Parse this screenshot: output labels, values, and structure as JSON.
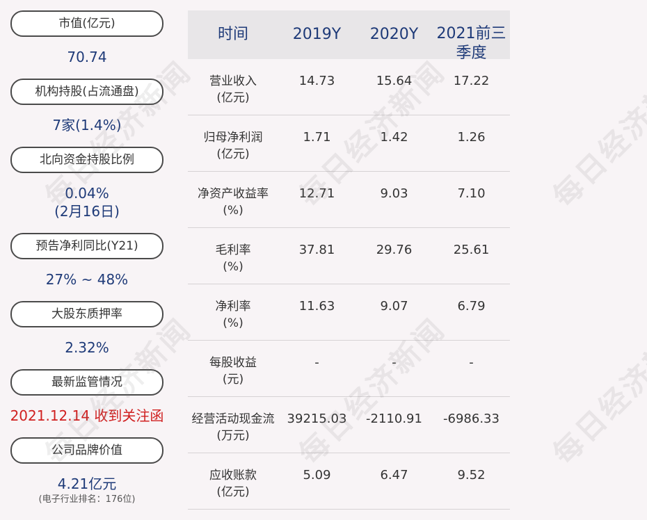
{
  "left_panel": [
    {
      "label": "市值(亿元)",
      "value": "70.74"
    },
    {
      "label": "机构持股(占流通盘)",
      "value": "7家(1.4%)"
    },
    {
      "label": "北向资金持股比例",
      "value": "0.04%",
      "value2": "(2月16日)"
    },
    {
      "label": "预告净利同比(Y21)",
      "value": "27% ~ 48%"
    },
    {
      "label": "大股东质押率",
      "value": "2.32%"
    },
    {
      "label": "最新监管情况",
      "value": "2021.12.14 收到关注函"
    },
    {
      "label": "公司品牌价值",
      "value": "4.21亿元",
      "note": "(电子行业排名：176位)"
    }
  ],
  "table": {
    "headers": [
      "时间",
      "2019Y",
      "2020Y",
      "2021前三季度"
    ],
    "rows": [
      {
        "label": [
          "营业收入",
          "(亿元)"
        ],
        "values": [
          "14.73",
          "15.64",
          "17.22"
        ]
      },
      {
        "label": [
          "归母净利润",
          "(亿元)"
        ],
        "values": [
          "1.71",
          "1.42",
          "1.26"
        ]
      },
      {
        "label": [
          "净资产收益率",
          "(%)"
        ],
        "values": [
          "12.71",
          "9.03",
          "7.10"
        ]
      },
      {
        "label": [
          "毛利率",
          "(%)"
        ],
        "values": [
          "37.81",
          "29.76",
          "25.61"
        ]
      },
      {
        "label": [
          "净利率",
          "(%)"
        ],
        "values": [
          "11.63",
          "9.07",
          "6.79"
        ]
      },
      {
        "label": [
          "每股收益",
          "(元)"
        ],
        "values": [
          "-",
          "-",
          "-"
        ]
      },
      {
        "label": [
          "经营活动现金流",
          "(万元)"
        ],
        "values": [
          "39215.03",
          "-2110.91",
          "-6986.33"
        ]
      },
      {
        "label": [
          "应收账款",
          "(亿元)"
        ],
        "values": [
          "5.09",
          "6.47",
          "9.52"
        ]
      }
    ]
  },
  "watermark": "每日经济新闻",
  "colors": {
    "value_blue": "#1e3a78",
    "alert_red": "#d02020",
    "background": "#f8f4f6"
  }
}
